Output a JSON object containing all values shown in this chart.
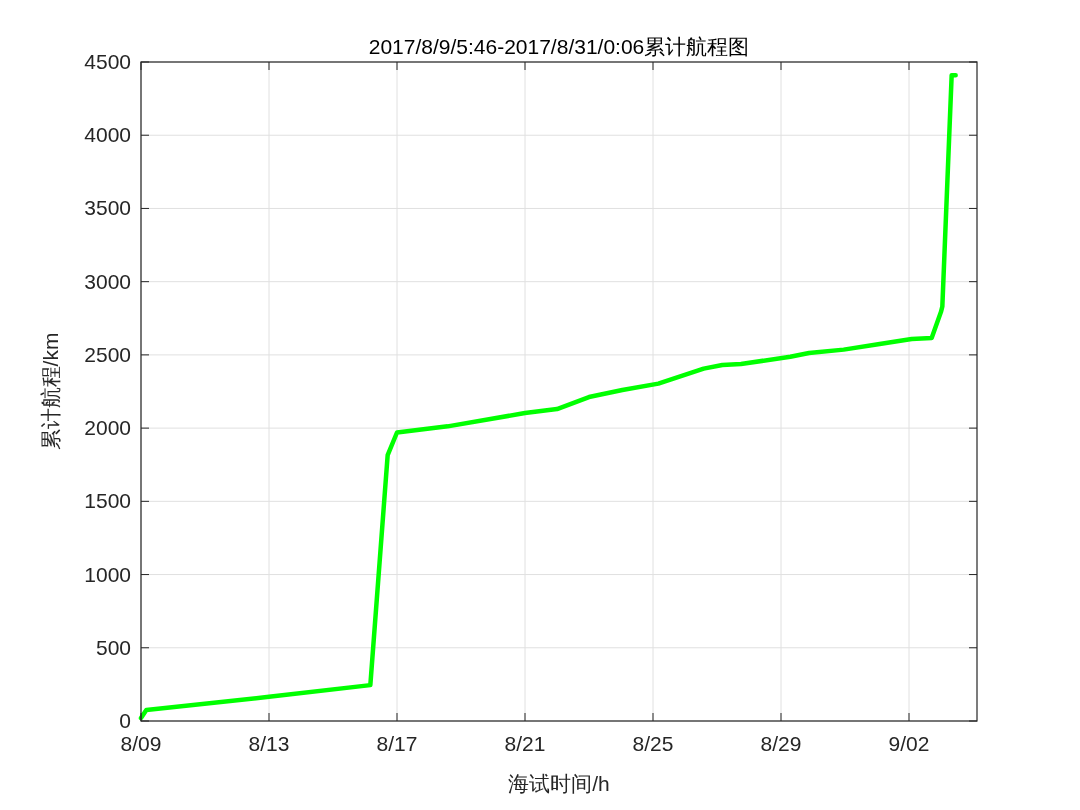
{
  "chart_data": {
    "type": "line",
    "title": "2017/8/9/5:46-2017/8/31/0:06累计航程图",
    "xlabel": "海试时间/h",
    "ylabel": "累计航程/km",
    "x": [
      "2017-08-09",
      "2017-08-09T04:00",
      "2017-08-13",
      "2017-08-16T04:00",
      "2017-08-16T17:00",
      "2017-08-17",
      "2017-08-18T14:00",
      "2017-08-21",
      "2017-08-22",
      "2017-08-23",
      "2017-08-24T01:00",
      "2017-08-25T04:00",
      "2017-08-26T14:00",
      "2017-08-27T04:00",
      "2017-08-27T18:00",
      "2017-08-29T07:00",
      "2017-08-29T21:00",
      "2017-08-30T23:00",
      "2017-09-01T02:00",
      "2017-09-02T02:00",
      "2017-09-02T17:00",
      "2017-09-03",
      "2017-09-03T01:00",
      "2017-09-03T08:00",
      "2017-09-03T11:00"
    ],
    "series": [
      {
        "color": "#00ff00",
        "values": [
          20,
          75,
          165,
          245,
          1816,
          1970,
          2012,
          2103,
          2130,
          2212,
          2260,
          2304,
          2406,
          2431,
          2438,
          2487,
          2513,
          2536,
          2574,
          2609,
          2615,
          2794,
          2830,
          4410,
          4410
        ]
      }
    ],
    "xlim": [
      "2017-08-09",
      "2017-09-04T03:00"
    ],
    "xticks": [
      {
        "value": "2017-08-09",
        "label": "8/09"
      },
      {
        "value": "2017-08-13",
        "label": "8/13"
      },
      {
        "value": "2017-08-17",
        "label": "8/17"
      },
      {
        "value": "2017-08-21",
        "label": "8/21"
      },
      {
        "value": "2017-08-25",
        "label": "8/25"
      },
      {
        "value": "2017-08-29",
        "label": "8/29"
      },
      {
        "value": "2017-09-02",
        "label": "9/02"
      }
    ],
    "ylim": [
      0,
      4500
    ],
    "yticks": [
      0,
      500,
      1000,
      1500,
      2000,
      2500,
      3000,
      3500,
      4000,
      4500
    ],
    "grid": true,
    "marker": "none",
    "line_style": "solid"
  }
}
